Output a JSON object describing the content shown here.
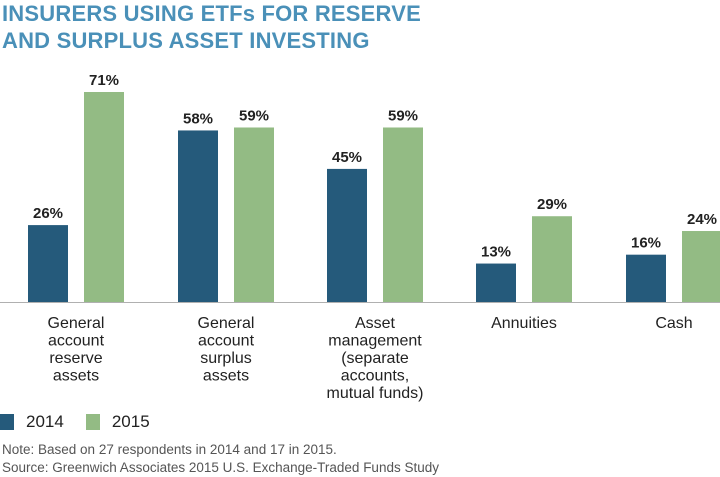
{
  "title_lines": [
    "INSURERS USING ETFs FOR RESERVE",
    "AND SURPLUS ASSET INVESTING"
  ],
  "colors": {
    "title": "#4a90b8",
    "s2014": "#255a7b",
    "s2015": "#93bb84",
    "axis": "#b0b0b0",
    "text": "#222222"
  },
  "legend": [
    {
      "label": "2014",
      "color": "#255a7b"
    },
    {
      "label": "2015",
      "color": "#93bb84"
    }
  ],
  "notes": {
    "note": "Note: Based on 27 respondents in 2014 and 17 in 2015.",
    "source": "Source: Greenwich Associates 2015 U.S. Exchange-Traded Funds Study"
  },
  "chart_data": {
    "type": "bar",
    "categories": [
      [
        "General",
        "account",
        "reserve",
        "assets"
      ],
      [
        "General",
        "account",
        "surplus",
        "assets"
      ],
      [
        "Asset",
        "management",
        "(separate",
        "accounts,",
        "mutual funds)"
      ],
      [
        "Annuities"
      ],
      [
        "Cash"
      ]
    ],
    "series": [
      {
        "name": "2014",
        "values": [
          26,
          58,
          45,
          13,
          16
        ],
        "labels": [
          "26%",
          "58%",
          "45%",
          "13%",
          "16%"
        ]
      },
      {
        "name": "2015",
        "values": [
          71,
          59,
          59,
          29,
          24
        ],
        "labels": [
          "71%",
          "59%",
          "59%",
          "29%",
          "24%"
        ]
      }
    ],
    "ylim": [
      0,
      71
    ],
    "grid": false,
    "legend_position": "bottom-left"
  }
}
